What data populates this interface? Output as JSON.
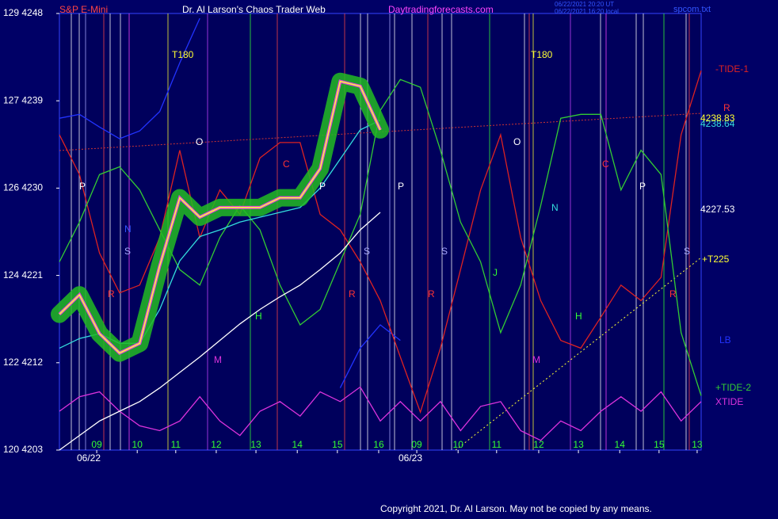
{
  "chart_data": {
    "type": "line",
    "title": "Dr. Al Larson's Chaos Trader Web",
    "instrument": "S&P E-Mini",
    "site": "Daytradingforecasts.com",
    "timestamps": [
      "06/22/2021 20:20 UT",
      "06/22/2021 16:20 local"
    ],
    "file": "spcom.txt",
    "copyright": "Copyright 2021, Dr. Al Larson. May not be copied by any means.",
    "dates": [
      "06/22",
      "06/23"
    ],
    "x": [
      0,
      0.5,
      1,
      1.5,
      2,
      2.5,
      3,
      3.5,
      4,
      4.5,
      5,
      5.5,
      6,
      6.5,
      7,
      7.5,
      8,
      8.5,
      9,
      9.5,
      10,
      10.5,
      11,
      11.5,
      12,
      12.5,
      13,
      13.5,
      14,
      14.5,
      15,
      15.5,
      16
    ],
    "xlim": [
      0,
      16
    ],
    "xticks": [
      {
        "value": 0.93,
        "label": "09"
      },
      {
        "value": 1.94,
        "label": "10"
      },
      {
        "value": 2.9,
        "label": "11"
      },
      {
        "value": 3.91,
        "label": "12"
      },
      {
        "value": 4.9,
        "label": "13"
      },
      {
        "value": 5.93,
        "label": "14"
      },
      {
        "value": 6.93,
        "label": "15"
      },
      {
        "value": 7.96,
        "label": "16"
      },
      {
        "value": 8.91,
        "label": "09"
      },
      {
        "value": 9.94,
        "label": "10"
      },
      {
        "value": 10.9,
        "label": "11"
      },
      {
        "value": 11.95,
        "label": "12"
      },
      {
        "value": 12.94,
        "label": "13"
      },
      {
        "value": 13.97,
        "label": "14"
      },
      {
        "value": 14.95,
        "label": "15"
      },
      {
        "value": 15.9,
        "label": "13"
      }
    ],
    "ylim": [
      4203,
      4248
    ],
    "yticks": [
      {
        "value": 4203,
        "label": "120 4203"
      },
      {
        "value": 4212,
        "label": "122 4212"
      },
      {
        "value": 4221,
        "label": "124 4221"
      },
      {
        "value": 4230,
        "label": "126 4230"
      },
      {
        "value": 4239,
        "label": "127 4239"
      },
      {
        "value": 4248,
        "label": "129 4248"
      }
    ],
    "series": [
      {
        "name": "LB",
        "color": "#2233ff",
        "values": [
          4237.2,
          4237.6,
          4236.3,
          4235.1,
          4235.9,
          4237.9,
          4242.9,
          4247.5,
          null,
          null,
          null,
          null,
          null,
          null,
          4209.4,
          4213.5,
          4215.9,
          4214.3,
          null,
          null,
          null,
          null,
          null,
          null,
          null,
          null,
          null,
          null,
          null,
          null,
          null,
          null,
          null
        ]
      },
      {
        "name": "-TIDE-1",
        "color": "#dd2222",
        "values": [
          4235.5,
          4231.4,
          4223.3,
          4219.2,
          4220,
          4224.9,
          4233.9,
          4224.9,
          4229.8,
          4227.3,
          4233.1,
          4234.7,
          4234.7,
          4227.3,
          4225.7,
          4222.4,
          4218.4,
          4212.6,
          4206.9,
          4213.5,
          4221.6,
          4229.8,
          4235.5,
          4224.9,
          4218.4,
          4214.3,
          4213.5,
          4216.7,
          4220,
          4218.4,
          4220.8,
          4235.5,
          4242.1
        ]
      },
      {
        "name": "+TIDE-2",
        "color": "#33cc33",
        "values": [
          4222.4,
          4226.5,
          4231.4,
          4232.2,
          4229.8,
          4225.7,
          4221.6,
          4220,
          4224.9,
          4228.2,
          4225.7,
          4220,
          4215.9,
          4217.5,
          4222.4,
          4227.3,
          4238,
          4241.2,
          4240.4,
          4233.9,
          4226.5,
          4222.4,
          4215.1,
          4220,
          4228.2,
          4237.2,
          4237.6,
          4237.6,
          4229.8,
          4233.9,
          4231.4,
          4215.1,
          4208.6
        ]
      },
      {
        "name": "XTIDE",
        "color": "#dd33dd",
        "values": [
          4207,
          4208.5,
          4209,
          4207,
          4205.5,
          4205,
          4206,
          4208.5,
          4206,
          4204.5,
          4207,
          4208,
          4206.5,
          4209,
          4208,
          4209.5,
          4206,
          4208,
          4206,
          4208,
          4205,
          4207.5,
          4208,
          4205,
          4204,
          4206,
          4205,
          4207,
          4208.5,
          4207,
          4209,
          4206,
          4208
        ]
      },
      {
        "name": "4227.53",
        "color": "#ffffff",
        "values": [
          4203,
          4204.5,
          4206,
          4207,
          4208,
          4209.4,
          4211,
          4212.6,
          4214.3,
          4216,
          4217.5,
          4218.8,
          4220,
          4221.6,
          4223.3,
          4225.7,
          4227.5,
          null,
          null,
          null,
          null,
          null,
          null,
          null,
          null,
          null,
          null,
          null,
          null,
          null,
          null,
          null,
          null
        ]
      },
      {
        "name": "4238.64",
        "color": "#33dddd",
        "values": [
          4213.5,
          4214.5,
          4215,
          4214,
          4214,
          4217.5,
          4222.5,
          4225,
          4225.7,
          4226.5,
          4227,
          4227.5,
          4228,
          4230,
          4233,
          4236,
          4237,
          null,
          null,
          null,
          null,
          null,
          null,
          null,
          null,
          null,
          null,
          null,
          null,
          null,
          null,
          null,
          null
        ]
      },
      {
        "name": "4238.83",
        "color": "#ffff33",
        "values": [
          4217,
          4219,
          4215,
          4213,
          4214,
          4222,
          4229,
          4227,
          4228,
          4228,
          4228,
          4229,
          4229,
          4232,
          4241,
          4240.5,
          4236,
          null,
          null,
          null,
          null,
          null,
          null,
          null,
          null,
          null,
          null,
          null,
          null,
          null,
          null,
          null,
          null
        ]
      }
    ],
    "labels_right": [
      "-TIDE-1",
      "R",
      "+T225"
    ],
    "annotations": [
      "T180",
      "T180",
      "O",
      "O",
      "P",
      "P",
      "P",
      "P",
      "S",
      "S",
      "S",
      "S",
      "N",
      "N",
      "C",
      "C",
      "R",
      "R",
      "R",
      "R",
      "H",
      "H",
      "M",
      "M",
      "J"
    ]
  }
}
